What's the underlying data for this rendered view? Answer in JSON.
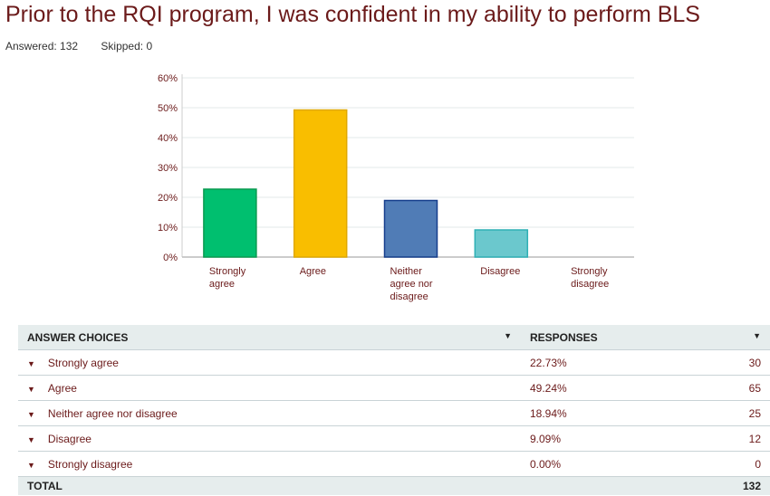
{
  "title": "Prior to the RQI program, I was confident in my ability to perform BLS",
  "answered_label": "Answered: 132",
  "skipped_label": "Skipped: 0",
  "chart_data": {
    "type": "bar",
    "categories": [
      "Strongly agree",
      "Agree",
      "Neither agree nor disagree",
      "Disagree",
      "Strongly disagree"
    ],
    "category_label_lines": [
      [
        "Strongly",
        "agree"
      ],
      [
        "Agree"
      ],
      [
        "Neither",
        "agree nor",
        "disagree"
      ],
      [
        "Disagree"
      ],
      [
        "Strongly",
        "disagree"
      ]
    ],
    "values": [
      22.73,
      49.24,
      18.94,
      9.09,
      0.0
    ],
    "colors": [
      "#00bf6f",
      "#f9be00",
      "#507cb6",
      "#6bc8cd",
      "#cccccc"
    ],
    "border_colors": [
      "#0a9a50",
      "#e0a800",
      "#163e8c",
      "#2fb0b5",
      "#cccccc"
    ],
    "yticks": [
      "0%",
      "10%",
      "20%",
      "30%",
      "40%",
      "50%",
      "60%"
    ],
    "ylim": [
      0,
      60
    ],
    "grid": true,
    "title": "",
    "xlabel": "",
    "ylabel": ""
  },
  "table": {
    "headers": [
      "ANSWER CHOICES",
      "RESPONSES"
    ],
    "rows": [
      {
        "choice": "Strongly agree",
        "percent": "22.73%",
        "count": "30"
      },
      {
        "choice": "Agree",
        "percent": "49.24%",
        "count": "65"
      },
      {
        "choice": "Neither agree nor disagree",
        "percent": "18.94%",
        "count": "25"
      },
      {
        "choice": "Disagree",
        "percent": "9.09%",
        "count": "12"
      },
      {
        "choice": "Strongly disagree",
        "percent": "0.00%",
        "count": "0"
      }
    ],
    "total_label": "TOTAL",
    "total": "132"
  }
}
